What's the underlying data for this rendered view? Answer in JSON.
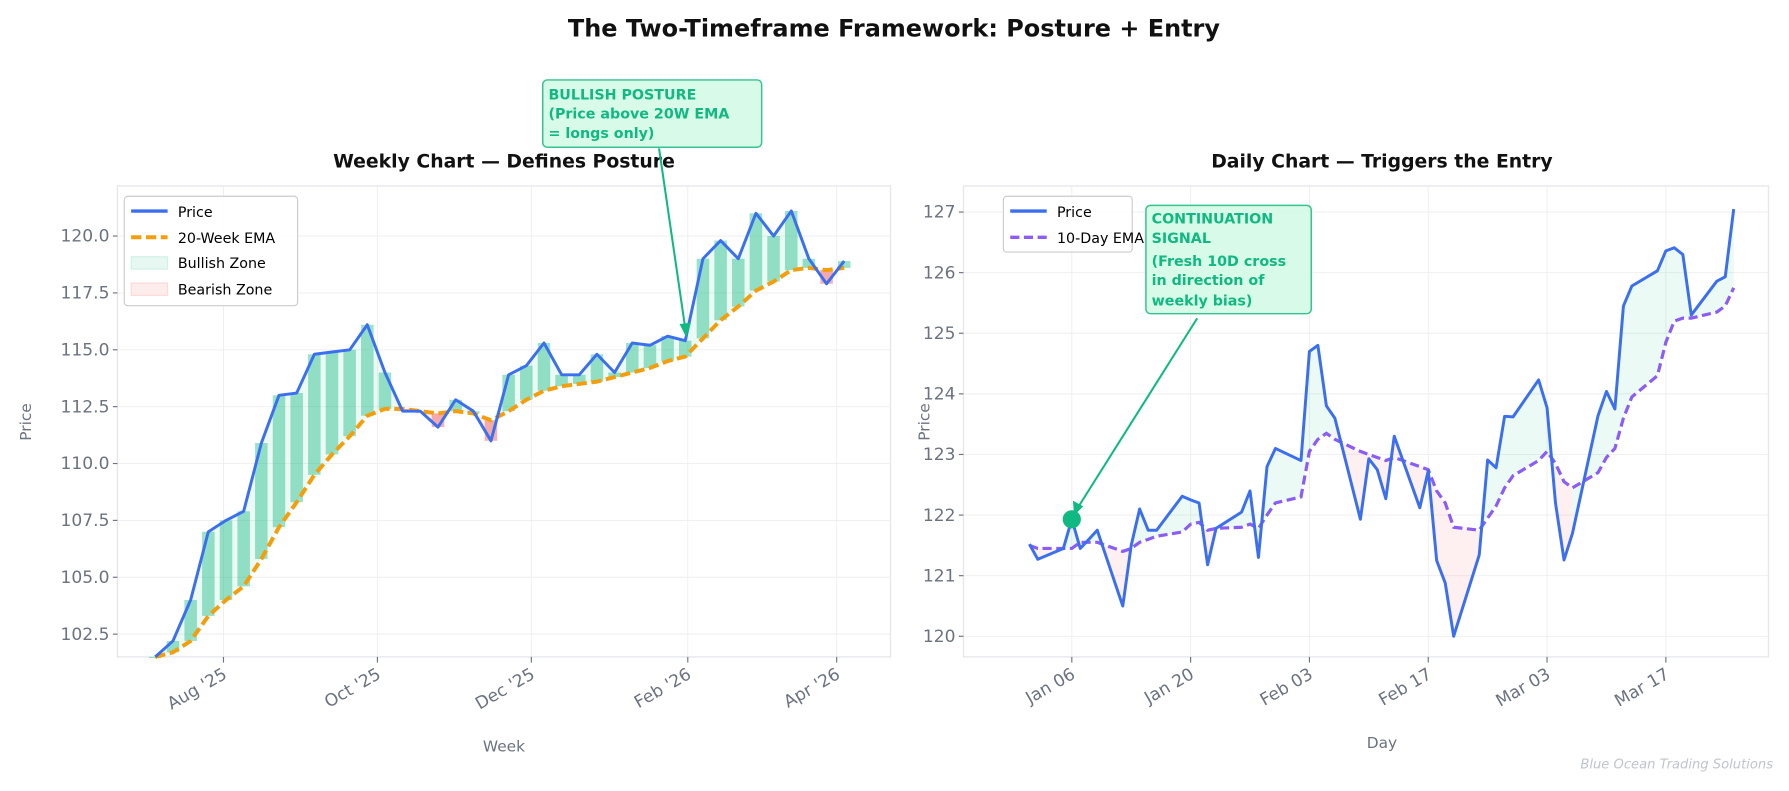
{
  "title": "The Two-Timeframe Framework: Posture + Entry",
  "watermark": "Blue Ocean Trading Solutions",
  "colors": {
    "price": "#3b6ff0",
    "weekly_ema": "#f59e0b",
    "daily_ema": "#8b5cf6",
    "bullish": "#10b981",
    "bearish": "#ef4444"
  },
  "chart_data": [
    {
      "type": "line",
      "title": "Weekly Chart — Defines Posture",
      "xlabel": "Week",
      "ylabel": "Price",
      "ylim": [
        101.5,
        122.2
      ],
      "grid": true,
      "legend_position": "top-left",
      "legend": [
        "Price",
        "20-Week EMA",
        "Bullish Zone",
        "Bearish Zone"
      ],
      "x_ticks": [
        "Aug '25",
        "Oct '25",
        "Dec '25",
        "Feb '26",
        "Apr '26"
      ],
      "x_tick_dates": [
        "2025-08-01",
        "2025-10-01",
        "2025-12-01",
        "2026-02-01",
        "2026-04-01"
      ],
      "y_ticks": [
        "102.5",
        "105.0",
        "107.5",
        "110.0",
        "112.5",
        "115.0",
        "117.5",
        "120.0"
      ],
      "start_date": "2025-07-05",
      "frequency": "weekly",
      "series": [
        {
          "name": "Price",
          "values": [
            101.5,
            102.2,
            104.0,
            107.0,
            107.5,
            107.9,
            110.9,
            113.0,
            113.1,
            114.8,
            114.9,
            115.0,
            116.1,
            114.0,
            112.3,
            112.3,
            111.6,
            112.8,
            112.3,
            111.0,
            113.9,
            114.3,
            115.3,
            113.9,
            113.9,
            114.8,
            114.0,
            115.3,
            115.2,
            115.6,
            115.4,
            119.0,
            119.8,
            119.0,
            121.0,
            120.0,
            121.1,
            119.0,
            117.9,
            118.9
          ]
        },
        {
          "name": "20-Week EMA",
          "values": [
            101.5,
            101.7,
            102.2,
            103.3,
            104.0,
            104.6,
            105.8,
            107.2,
            108.3,
            109.5,
            110.4,
            111.2,
            112.1,
            112.4,
            112.4,
            112.3,
            112.2,
            112.3,
            112.2,
            111.9,
            112.3,
            112.8,
            113.2,
            113.4,
            113.5,
            113.6,
            113.8,
            114.0,
            114.2,
            114.5,
            114.7,
            115.5,
            116.3,
            116.9,
            117.6,
            118.0,
            118.5,
            118.6,
            118.5,
            118.6
          ]
        }
      ],
      "annotation": {
        "lines": [
          "BULLISH POSTURE",
          "(Price above 20W EMA",
          "= longs only)"
        ],
        "target_date": "2026-01-31",
        "target_value": 115.4
      }
    },
    {
      "type": "line",
      "title": "Daily Chart — Triggers the Entry",
      "xlabel": "Day",
      "ylabel": "Price",
      "ylim": [
        119.66,
        127.43
      ],
      "grid": true,
      "legend_position": "top-left",
      "legend": [
        "Price",
        "10-Day EMA"
      ],
      "x_ticks": [
        "Jan 06",
        "Jan 20",
        "Feb 03",
        "Feb 17",
        "Mar 03",
        "Mar 17"
      ],
      "x_tick_dates": [
        "2026-01-06",
        "2026-01-20",
        "2026-02-03",
        "2026-02-17",
        "2026-03-03",
        "2026-03-17"
      ],
      "y_ticks": [
        "120",
        "121",
        "122",
        "123",
        "124",
        "125",
        "126",
        "127"
      ],
      "x": [
        "2026-01-01",
        "2026-01-02",
        "2026-01-05",
        "2026-01-06",
        "2026-01-07",
        "2026-01-08",
        "2026-01-09",
        "2026-01-12",
        "2026-01-13",
        "2026-01-14",
        "2026-01-15",
        "2026-01-16",
        "2026-01-19",
        "2026-01-20",
        "2026-01-21",
        "2026-01-22",
        "2026-01-23",
        "2026-01-26",
        "2026-01-27",
        "2026-01-28",
        "2026-01-29",
        "2026-01-30",
        "2026-02-02",
        "2026-02-03",
        "2026-02-04",
        "2026-02-05",
        "2026-02-06",
        "2026-02-09",
        "2026-02-10",
        "2026-02-11",
        "2026-02-12",
        "2026-02-13",
        "2026-02-16",
        "2026-02-17",
        "2026-02-18",
        "2026-02-19",
        "2026-02-20",
        "2026-02-23",
        "2026-02-24",
        "2026-02-25",
        "2026-02-26",
        "2026-02-27",
        "2026-03-02",
        "2026-03-03",
        "2026-03-04",
        "2026-03-05",
        "2026-03-06",
        "2026-03-09",
        "2026-03-10",
        "2026-03-11",
        "2026-03-12",
        "2026-03-13",
        "2026-03-16",
        "2026-03-17",
        "2026-03-18",
        "2026-03-19",
        "2026-03-20",
        "2026-03-23",
        "2026-03-24",
        "2026-03-25"
      ],
      "series": [
        {
          "name": "Price",
          "values": [
            121.52,
            121.27,
            121.45,
            121.93,
            121.45,
            121.6,
            121.75,
            120.5,
            121.5,
            122.1,
            121.75,
            121.75,
            122.31,
            122.25,
            122.2,
            121.18,
            121.78,
            122.05,
            122.4,
            121.3,
            122.8,
            123.1,
            122.9,
            124.7,
            124.8,
            123.8,
            123.6,
            121.93,
            122.93,
            122.75,
            122.27,
            123.3,
            122.12,
            122.73,
            121.25,
            120.88,
            120.0,
            121.34,
            122.91,
            122.78,
            123.63,
            123.62,
            124.23,
            123.77,
            122.2,
            121.26,
            121.7,
            123.64,
            124.04,
            123.75,
            125.45,
            125.78,
            126.03,
            126.36,
            126.41,
            126.3,
            125.3,
            125.86,
            125.93,
            127.05
          ]
        },
        {
          "name": "10-Day EMA",
          "values": [
            121.5,
            121.45,
            121.45,
            121.45,
            121.55,
            121.55,
            121.55,
            121.4,
            121.45,
            121.55,
            121.6,
            121.65,
            121.72,
            121.85,
            121.88,
            121.75,
            121.78,
            121.8,
            121.85,
            121.78,
            122.0,
            122.2,
            122.3,
            123.05,
            123.25,
            123.35,
            123.25,
            123.05,
            123.0,
            122.95,
            122.9,
            122.95,
            122.8,
            122.75,
            122.4,
            122.2,
            121.8,
            121.75,
            121.95,
            122.15,
            122.45,
            122.65,
            122.9,
            123.05,
            122.85,
            122.55,
            122.45,
            122.7,
            122.95,
            123.1,
            123.6,
            123.95,
            124.3,
            124.85,
            125.2,
            125.25,
            125.25,
            125.35,
            125.45,
            125.75
          ]
        }
      ],
      "signal_point": {
        "date": "2026-01-06",
        "value": 121.93
      },
      "annotation": {
        "lines": [
          "CONTINUATION",
          "SIGNAL",
          "(Fresh 10D cross",
          "in direction of",
          "weekly bias)"
        ]
      }
    }
  ]
}
